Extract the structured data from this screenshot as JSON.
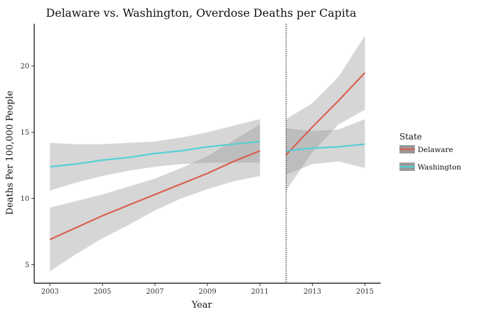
{
  "chart_data": {
    "type": "line",
    "title": "Delaware vs. Washington, Overdose Deaths per Capita",
    "xlabel": "Year",
    "ylabel": "Deaths Per 100,000 People",
    "xlim": [
      2002.4,
      2015.6
    ],
    "ylim": [
      3.6,
      23.2
    ],
    "x_ticks": [
      2003,
      2005,
      2007,
      2009,
      2011,
      2013,
      2015
    ],
    "y_ticks": [
      5,
      10,
      15,
      20
    ],
    "grid": false,
    "vline_x": 2012,
    "legend": {
      "title": "State",
      "position": "right",
      "entries": [
        "Delaware",
        "Washington"
      ]
    },
    "series": [
      {
        "name": "Delaware",
        "color": "#D9604F",
        "segments": [
          {
            "x": [
              2003,
              2004,
              2005,
              2006,
              2007,
              2008,
              2009,
              2010,
              2011
            ],
            "y": [
              6.9,
              7.8,
              8.7,
              9.5,
              10.3,
              11.1,
              11.9,
              12.8,
              13.6
            ],
            "lower": [
              4.5,
              5.8,
              7.0,
              8.0,
              9.1,
              10.0,
              10.7,
              11.3,
              11.7
            ],
            "upper": [
              9.3,
              9.8,
              10.3,
              10.9,
              11.5,
              12.3,
              13.2,
              14.4,
              15.6
            ]
          },
          {
            "x": [
              2012,
              2013,
              2014,
              2015
            ],
            "y": [
              13.3,
              15.4,
              17.4,
              19.5
            ],
            "lower": [
              10.6,
              13.5,
              15.6,
              16.7
            ],
            "upper": [
              16.0,
              17.2,
              19.2,
              22.3
            ]
          }
        ]
      },
      {
        "name": "Washington",
        "color": "#55CFD6",
        "segments": [
          {
            "x": [
              2003,
              2004,
              2005,
              2006,
              2007,
              2008,
              2009,
              2010,
              2011
            ],
            "y": [
              12.4,
              12.6,
              12.9,
              13.1,
              13.4,
              13.6,
              13.9,
              14.1,
              14.3
            ],
            "lower": [
              10.6,
              11.2,
              11.7,
              12.1,
              12.4,
              12.6,
              12.7,
              12.7,
              12.7
            ],
            "upper": [
              14.2,
              14.1,
              14.1,
              14.2,
              14.3,
              14.6,
              15.0,
              15.5,
              16.0
            ]
          },
          {
            "x": [
              2012,
              2013,
              2014,
              2015
            ],
            "y": [
              13.6,
              13.8,
              13.9,
              14.1
            ],
            "lower": [
              11.8,
              12.6,
              12.8,
              12.3
            ],
            "upper": [
              15.3,
              15.1,
              15.2,
              16.0
            ]
          }
        ]
      }
    ]
  }
}
